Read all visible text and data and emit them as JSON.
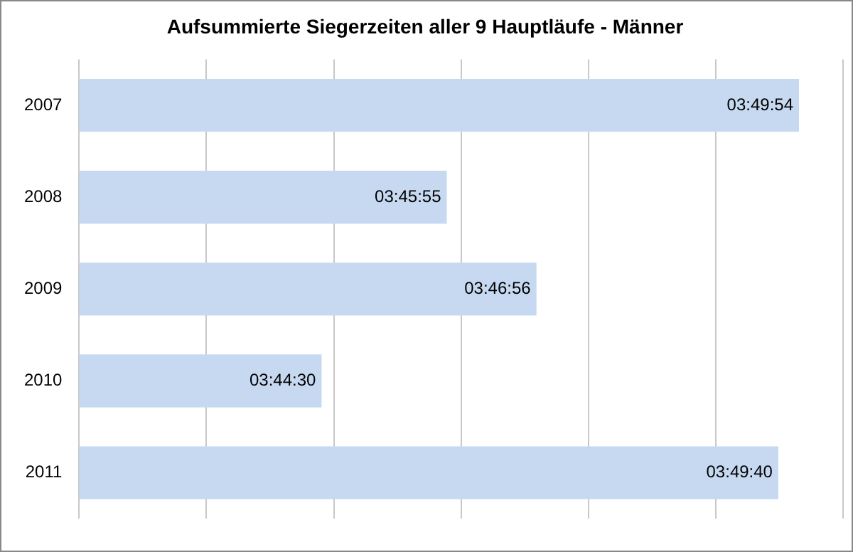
{
  "chart_data": {
    "type": "bar",
    "orientation": "horizontal",
    "title": "Aufsummierte Siegerzeiten aller 9 Hauptläufe - Männer",
    "categories": [
      "2007",
      "2008",
      "2009",
      "2010",
      "2011"
    ],
    "values": [
      3.8317,
      3.7653,
      3.7822,
      3.7417,
      3.8278
    ],
    "value_labels": [
      "03:49:54",
      "03:45:55",
      "03:46:56",
      "03:44:30",
      "03:49:40"
    ],
    "color": "#c6d9f1",
    "xlim": [
      3.696,
      3.84
    ],
    "xticks": [
      {
        "value": 3.696,
        "label": null
      },
      {
        "value": 3.72,
        "label": null
      },
      {
        "value": 3.744,
        "label": null
      },
      {
        "value": 3.768,
        "label": null
      },
      {
        "value": 3.792,
        "label": null
      },
      {
        "value": 3.816,
        "label": null
      },
      {
        "value": 3.84,
        "label": null
      }
    ],
    "grid": "x",
    "legend": false
  }
}
